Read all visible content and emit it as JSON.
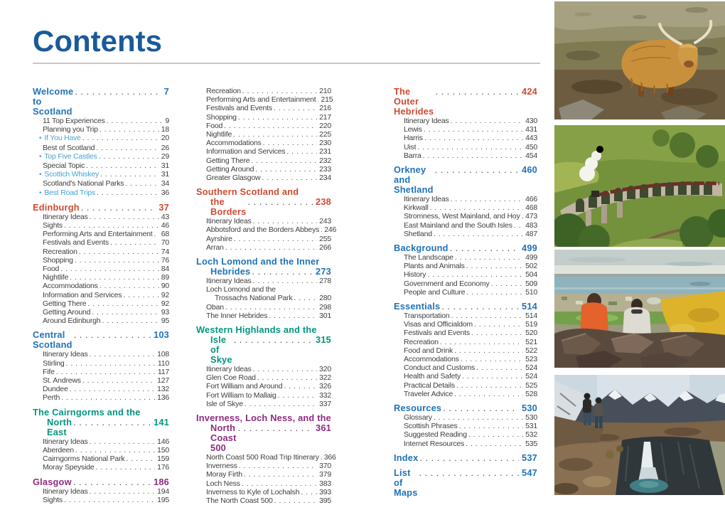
{
  "page": {
    "title": "Contents"
  },
  "colors": {
    "blue": "#1f72b8",
    "red": "#d04a31",
    "teal": "#00957d",
    "purple": "#8e2a80",
    "highlight": "#44a3d4",
    "text": "#3e3e3e",
    "title": "#1b5a99",
    "rule": "#c7c7c7"
  },
  "toc_columns": [
    {
      "sections": [
        {
          "title_lines": [
            "Welcome to Scotland"
          ],
          "page": "7",
          "color": "blue",
          "items": [
            {
              "label": "11 Top Experiences",
              "page": "9"
            },
            {
              "label": "Planning you Trip",
              "page": "18"
            },
            {
              "label": "If You Have",
              "page": "20",
              "hl": true
            },
            {
              "label": "Best of Scotland",
              "page": "26"
            },
            {
              "label": "Top Five Castles",
              "page": "29",
              "hl": true
            },
            {
              "label": "Special Topic",
              "page": "31"
            },
            {
              "label": "Scottich Whiskey",
              "page": "31",
              "hl": true
            },
            {
              "label": "Scotland's National Parks",
              "page": "34"
            },
            {
              "label": "Best Road Trips",
              "page": "36",
              "hl": true
            }
          ]
        },
        {
          "title_lines": [
            "Edinburgh"
          ],
          "page": "37",
          "color": "red",
          "items": [
            {
              "label": "Itinerary Ideas",
              "page": "43"
            },
            {
              "label": "Sights",
              "page": "46"
            },
            {
              "label": "Performing Arts and Entertainment",
              "page": "68"
            },
            {
              "label": "Festivals and Events",
              "page": "70"
            },
            {
              "label": "Recreation",
              "page": "74"
            },
            {
              "label": "Shopping",
              "page": "76"
            },
            {
              "label": "Food",
              "page": "84"
            },
            {
              "label": "Nightlife",
              "page": "89"
            },
            {
              "label": "Accommodations",
              "page": "90"
            },
            {
              "label": "Information and Services",
              "page": "92"
            },
            {
              "label": "Getting There",
              "page": "92"
            },
            {
              "label": "Getting Around",
              "page": "93"
            },
            {
              "label": "Around Edinburgh",
              "page": "95"
            }
          ]
        },
        {
          "title_lines": [
            "Central Scotland"
          ],
          "page": "103",
          "color": "blue",
          "items": [
            {
              "label": "Itinerary Ideas",
              "page": "108"
            },
            {
              "label": "Stirling",
              "page": "110"
            },
            {
              "label": "Fife",
              "page": "117"
            },
            {
              "label": "St. Andrews",
              "page": "127"
            },
            {
              "label": "Dundee",
              "page": "132"
            },
            {
              "label": "Perth",
              "page": "136"
            }
          ]
        },
        {
          "title_lines": [
            "The Cairngorms and the",
            "North East"
          ],
          "page": "141",
          "color": "teal",
          "items": [
            {
              "label": "Itinerary Ideas",
              "page": "146"
            },
            {
              "label": "Aberdeen",
              "page": "150"
            },
            {
              "label": "Cairngorms National Park",
              "page": "159"
            },
            {
              "label": "Moray Speyside",
              "page": "176"
            }
          ]
        },
        {
          "title_lines": [
            "Glasgow"
          ],
          "page": "186",
          "color": "purple",
          "items": [
            {
              "label": "Itinerary Ideas",
              "page": "194"
            },
            {
              "label": "Sights",
              "page": "195"
            }
          ]
        }
      ]
    },
    {
      "sections": [
        {
          "title_lines": [],
          "items": [
            {
              "label": "Recreation",
              "page": "210"
            },
            {
              "label": "Performing Arts and Entertainment",
              "page": "215"
            },
            {
              "label": "Festivals and Events",
              "page": "216"
            },
            {
              "label": "Shopping",
              "page": "217"
            },
            {
              "label": "Food",
              "page": "220"
            },
            {
              "label": "Nightlife",
              "page": "225"
            },
            {
              "label": "Accommodations",
              "page": "230"
            },
            {
              "label": "Information and Services",
              "page": "231"
            },
            {
              "label": "Getting There",
              "page": "232"
            },
            {
              "label": "Getting Around",
              "page": "233"
            },
            {
              "label": "Greater Glasgow",
              "page": "234"
            }
          ]
        },
        {
          "title_lines": [
            "Southern Scotland and",
            "the Borders"
          ],
          "page": "238",
          "color": "red",
          "items": [
            {
              "label": "Itinerary Ideas",
              "page": "243"
            },
            {
              "label": "Abbotsford and the Borders Abbeys",
              "page": "246"
            },
            {
              "label": "Ayrshire",
              "page": "255"
            },
            {
              "label": "Arran",
              "page": "266"
            }
          ]
        },
        {
          "title_lines": [
            "Loch Lomond and the Inner",
            "Hebrides"
          ],
          "page": "273",
          "color": "blue",
          "items": [
            {
              "label": "Itinerary Ideas",
              "page": "278"
            },
            {
              "label": "Loch Lomond and the",
              "label2": "Trossachs National Park",
              "page": "280"
            },
            {
              "label": "Oban",
              "page": "298"
            },
            {
              "label": "The Inner Hebrides",
              "page": "301"
            }
          ]
        },
        {
          "title_lines": [
            "Western Highlands and the",
            "Isle of Skye"
          ],
          "page": "315",
          "color": "teal",
          "items": [
            {
              "label": "Itinerary Ideas",
              "page": "320"
            },
            {
              "label": "Glen Coe Road",
              "page": "322"
            },
            {
              "label": "Fort William and Around",
              "page": "326"
            },
            {
              "label": "Fort William to Mallaig",
              "page": "332"
            },
            {
              "label": "Isle of Skye",
              "page": "337"
            }
          ]
        },
        {
          "title_lines": [
            "Inverness, Loch Ness, and the",
            "North Coast 500"
          ],
          "page": "361",
          "color": "purple",
          "items": [
            {
              "label": "North Coast 500 Road Trip Itinerary",
              "page": "366"
            },
            {
              "label": "Inverness",
              "page": "370"
            },
            {
              "label": "Moray Firth",
              "page": "379"
            },
            {
              "label": "Loch Ness",
              "page": "383"
            },
            {
              "label": "Inverness to Kyle of Lochalsh",
              "page": "393"
            },
            {
              "label": "The North Coast 500",
              "page": "395"
            }
          ]
        }
      ]
    },
    {
      "sections": [
        {
          "title_lines": [
            "The Outer Hebrides"
          ],
          "page": "424",
          "color": "red",
          "items": [
            {
              "label": "Itinerary Ideas",
              "page": "430"
            },
            {
              "label": "Lewis",
              "page": "431"
            },
            {
              "label": "Harris",
              "page": "443"
            },
            {
              "label": "Uist",
              "page": "450"
            },
            {
              "label": "Barra",
              "page": "454"
            }
          ]
        },
        {
          "title_lines": [
            "Orkney and Shetland"
          ],
          "page": "460",
          "color": "blue",
          "items": [
            {
              "label": "Itinerary Ideas",
              "page": "466"
            },
            {
              "label": "Kirkwall",
              "page": "468"
            },
            {
              "label": "Stromness, West Mainland, and Hoy",
              "page": "473"
            },
            {
              "label": "East Mainland and the South Isles",
              "page": "483"
            },
            {
              "label": "Shetland",
              "page": "487"
            }
          ]
        },
        {
          "title_lines": [
            "Background"
          ],
          "page": "499",
          "color": "blue",
          "items": [
            {
              "label": "The Landscape",
              "page": "499"
            },
            {
              "label": "Plants and Animals",
              "page": "502"
            },
            {
              "label": "History",
              "page": "504"
            },
            {
              "label": "Government and Economy",
              "page": "509"
            },
            {
              "label": "People and Culture",
              "page": "510"
            }
          ]
        },
        {
          "title_lines": [
            "Essentials"
          ],
          "page": "514",
          "color": "blue",
          "items": [
            {
              "label": "Transportation",
              "page": "514"
            },
            {
              "label": "Visas and Officialdom",
              "page": "519"
            },
            {
              "label": "Festivals and Events",
              "page": "520"
            },
            {
              "label": "Recreation",
              "page": "521"
            },
            {
              "label": "Food and Drink",
              "page": "522"
            },
            {
              "label": "Accommodations",
              "page": "523"
            },
            {
              "label": "Conduct and Customs",
              "page": "524"
            },
            {
              "label": "Health and Safety",
              "page": "524"
            },
            {
              "label": "Practical Details",
              "page": "525"
            },
            {
              "label": "Traveler Advice",
              "page": "528"
            }
          ]
        },
        {
          "title_lines": [
            "Resources"
          ],
          "page": "530",
          "color": "blue",
          "items": [
            {
              "label": "Glossary",
              "page": "530"
            },
            {
              "label": "Scottish Phrases",
              "page": "531"
            },
            {
              "label": "Suggested Reading",
              "page": "532"
            },
            {
              "label": "Internet Resources",
              "page": "535"
            }
          ]
        },
        {
          "title_lines": [
            "Index"
          ],
          "page": "537",
          "color": "blue",
          "items": []
        },
        {
          "title_lines": [
            "List of Maps"
          ],
          "page": "547",
          "color": "blue",
          "items": []
        }
      ]
    }
  ],
  "photos": [
    {
      "name": "highland-cow-photo"
    },
    {
      "name": "glenfinnan-viaduct-steam-train-photo"
    },
    {
      "name": "hilltop-city-overlook-photo"
    },
    {
      "name": "mountain-waterfall-photo"
    }
  ]
}
